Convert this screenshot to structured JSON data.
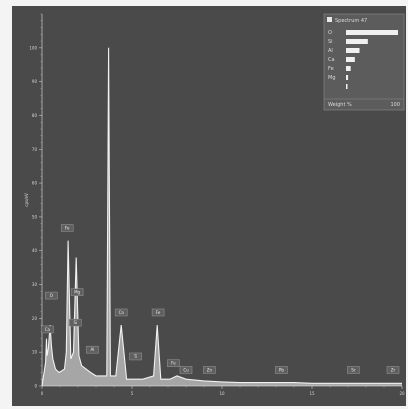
{
  "chart_data": {
    "type": "line",
    "title": "",
    "xlabel": "",
    "ylabel": "cps/eV",
    "xlim": [
      0,
      20
    ],
    "ylim": [
      0,
      110
    ],
    "x_ticks": [
      "0",
      "5",
      "10",
      "15",
      "20"
    ],
    "y_ticks": [
      "0",
      "10",
      "20",
      "30",
      "40",
      "50",
      "60",
      "70",
      "80",
      "90",
      "100"
    ],
    "series": [
      {
        "name": "Spectrum 47",
        "x": [
          0.0,
          0.2,
          0.25,
          0.28,
          0.35,
          0.45,
          0.52,
          0.6,
          0.75,
          0.95,
          1.25,
          1.35,
          1.45,
          1.6,
          1.75,
          1.9,
          2.05,
          2.2,
          2.45,
          2.7,
          3.0,
          3.3,
          3.6,
          3.7,
          3.8,
          4.1,
          4.4,
          4.7,
          4.9,
          5.0,
          5.2,
          5.4,
          5.6,
          6.2,
          6.4,
          6.6,
          7.1,
          7.5,
          8.0,
          9.0,
          10.0,
          11.0,
          12.0,
          13.0,
          14.0,
          15.0,
          16.0,
          17.0,
          18.0,
          19.0,
          20.0
        ],
        "y": [
          0,
          7,
          14,
          9,
          11,
          18,
          12,
          8,
          5,
          4,
          5,
          10,
          43,
          8,
          10,
          38,
          9,
          6,
          5,
          4,
          3,
          3,
          3,
          100,
          3,
          3,
          18,
          2,
          2,
          2,
          2,
          2,
          2,
          3,
          18,
          2,
          2,
          3,
          2,
          1.5,
          1.2,
          1,
          1,
          1,
          1,
          0.8,
          0.8,
          0.8,
          0.8,
          0.8,
          0.8
        ]
      }
    ],
    "annotations": [
      {
        "label": "Ca",
        "x": 0.3,
        "y": 16
      },
      {
        "label": "O",
        "x": 0.52,
        "y": 26
      },
      {
        "label": "Fe",
        "x": 1.4,
        "y": 46
      },
      {
        "label": "Mg",
        "x": 1.95,
        "y": 27
      },
      {
        "label": "Si",
        "x": 1.85,
        "y": 18
      },
      {
        "label": "Al",
        "x": 2.8,
        "y": 10
      },
      {
        "label": "Ca",
        "x": 4.4,
        "y": 21
      },
      {
        "label": "Ti",
        "x": 5.2,
        "y": 8
      },
      {
        "label": "Fe",
        "x": 6.45,
        "y": 21
      },
      {
        "label": "Fe",
        "x": 7.3,
        "y": 6
      },
      {
        "label": "Cu",
        "x": 8.0,
        "y": 4
      },
      {
        "label": "Zn",
        "x": 9.3,
        "y": 4
      },
      {
        "label": "Pb",
        "x": 13.3,
        "y": 4
      },
      {
        "label": "Sr",
        "x": 17.3,
        "y": 4
      },
      {
        "label": "Zr",
        "x": 19.5,
        "y": 4
      }
    ],
    "grid": false,
    "legend_position": "top-right"
  },
  "legend": {
    "title": "Spectrum 47",
    "items": [
      {
        "label": "O",
        "value": 100
      },
      {
        "label": "Si",
        "value": 42
      },
      {
        "label": "Al",
        "value": 26
      },
      {
        "label": "Ca",
        "value": 17
      },
      {
        "label": "Fe",
        "value": 9
      },
      {
        "label": "Mg",
        "value": 4
      },
      {
        "label": "",
        "value": 2
      }
    ],
    "footer_left": "Weight %",
    "footer_right": "100"
  },
  "colors": {
    "plot_bg": "#4a4a4a",
    "spectrum": "#f2f2f2",
    "axis": "#bdbdbd",
    "legend_bg": "#5c5c5c",
    "legend_bar": "#f0f0f0"
  }
}
